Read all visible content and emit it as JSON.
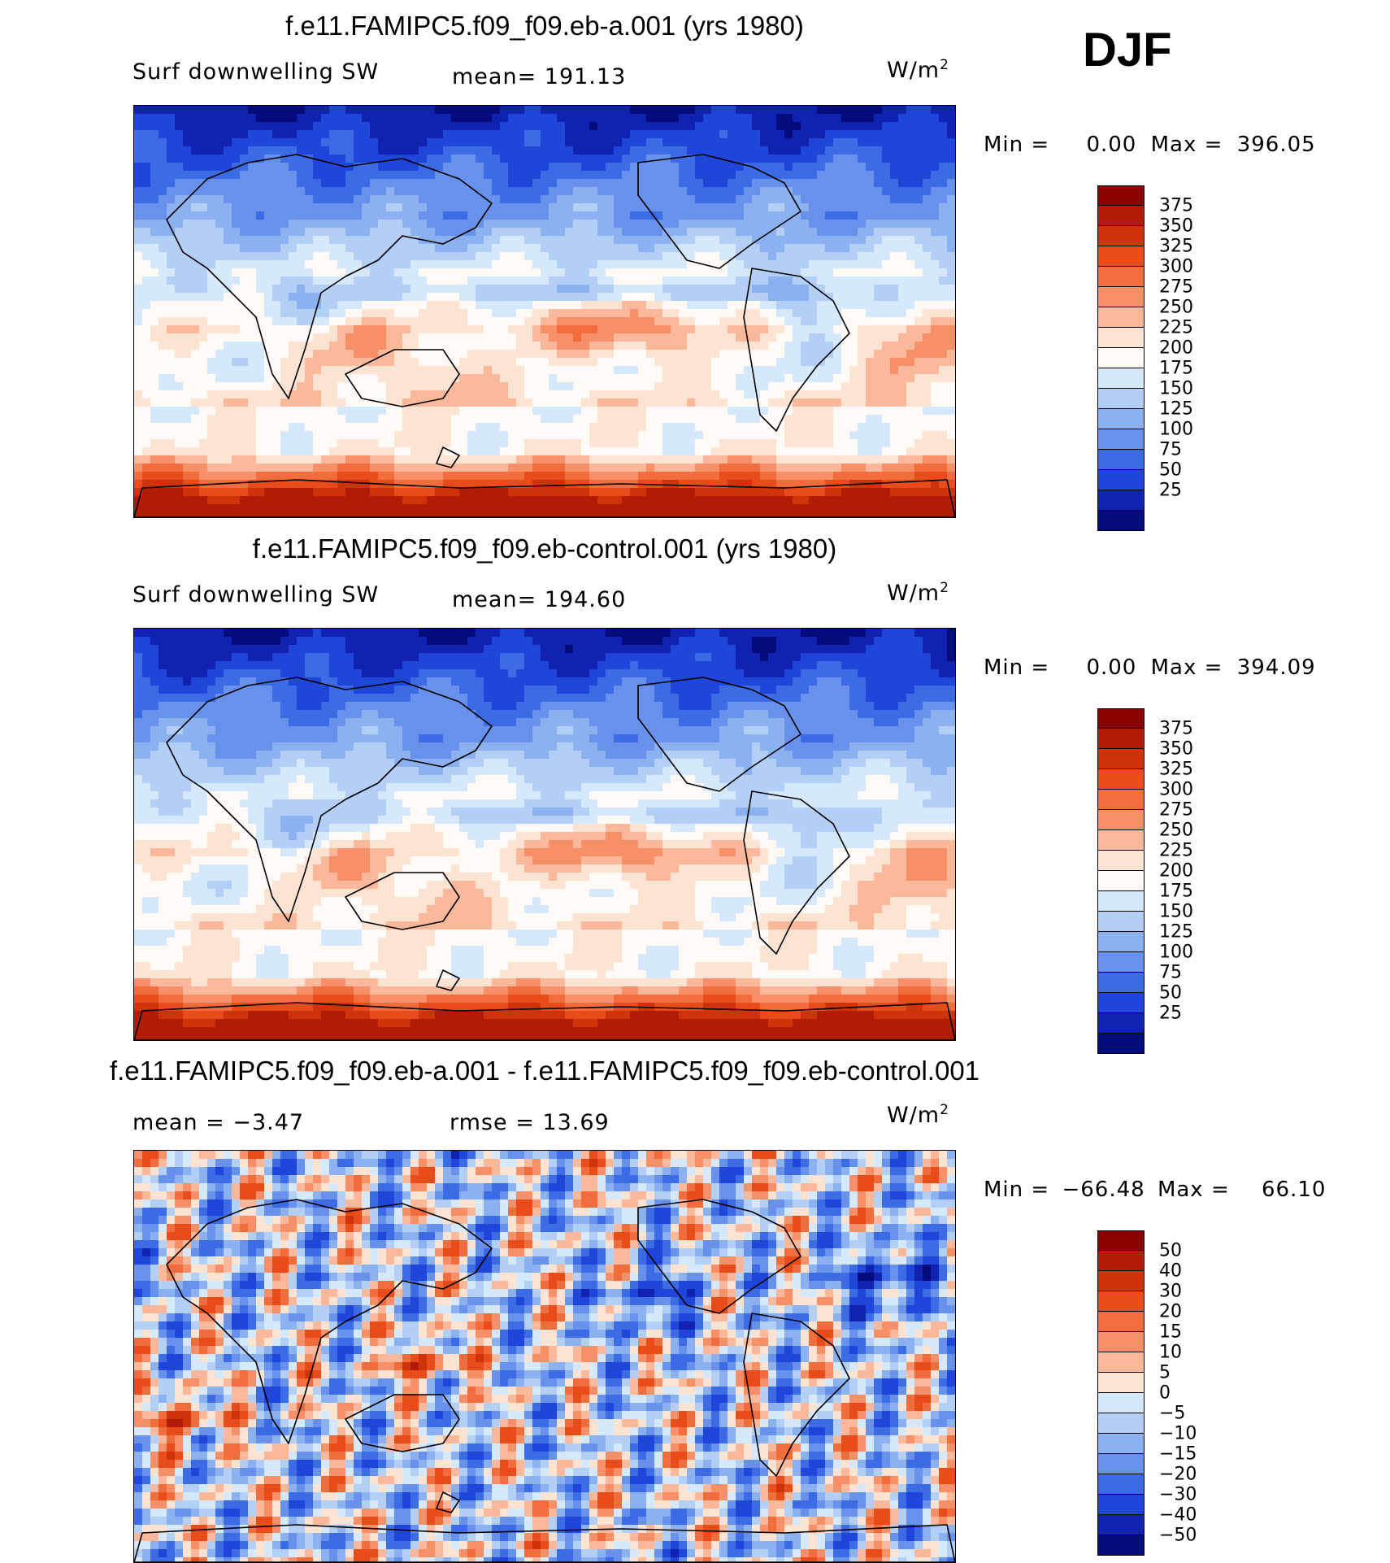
{
  "season": "DJF",
  "panels": [
    {
      "title": "f.e11.FAMIPC5.f09_f09.eb-a.001 (yrs 1980)",
      "left_label": "Surf downwelling SW",
      "center_label": "mean= 191.13",
      "unit": "W/m",
      "unit_sup": "2",
      "min_label": "Min =",
      "min_value": "0.00",
      "max_label": "Max =",
      "max_value": "396.05",
      "kind": "abs"
    },
    {
      "title": "f.e11.FAMIPC5.f09_f09.eb-control.001 (yrs 1980)",
      "left_label": "Surf downwelling SW",
      "center_label": "mean= 194.60",
      "unit": "W/m",
      "unit_sup": "2",
      "min_label": "Min =",
      "min_value": "0.00",
      "max_label": "Max =",
      "max_value": "394.09",
      "kind": "abs"
    },
    {
      "title": "f.e11.FAMIPC5.f09_f09.eb-a.001 - f.e11.FAMIPC5.f09_f09.eb-control.001",
      "left_label": "mean =   −3.47",
      "center_label": "rmse =   13.69",
      "unit": "W/m",
      "unit_sup": "2",
      "min_label": "Min =",
      "min_value": "−66.48",
      "max_label": "Max =",
      "max_value": "66.10",
      "kind": "diff"
    }
  ],
  "colorbars": {
    "abs": {
      "labels": [
        "375",
        "350",
        "325",
        "300",
        "275",
        "250",
        "225",
        "200",
        "175",
        "150",
        "125",
        "100",
        "75",
        "50",
        "25"
      ],
      "colors": [
        "#8b0000",
        "#b01c05",
        "#cf330a",
        "#e84c1a",
        "#f26d3d",
        "#f79068",
        "#fbb89a",
        "#fde4d2",
        "#fffaf5",
        "#d6e8fb",
        "#b3cff6",
        "#8cb1f0",
        "#6891eb",
        "#3d6be6",
        "#1f46d8",
        "#0f23b0",
        "#040b7d"
      ]
    },
    "diff": {
      "labels": [
        "50",
        "40",
        "30",
        "20",
        "15",
        "10",
        "5",
        "0",
        "−5",
        "−10",
        "−15",
        "−20",
        "−30",
        "−40",
        "−50"
      ],
      "colors": [
        "#8b0000",
        "#b01c05",
        "#cf330a",
        "#e84c1a",
        "#f26d3d",
        "#f79068",
        "#fbb89a",
        "#fde4d2",
        "#d6e8fb",
        "#b3cff6",
        "#8cb1f0",
        "#6891eb",
        "#3d6be6",
        "#1f46d8",
        "#0f23b0",
        "#040b7d"
      ]
    }
  }
}
